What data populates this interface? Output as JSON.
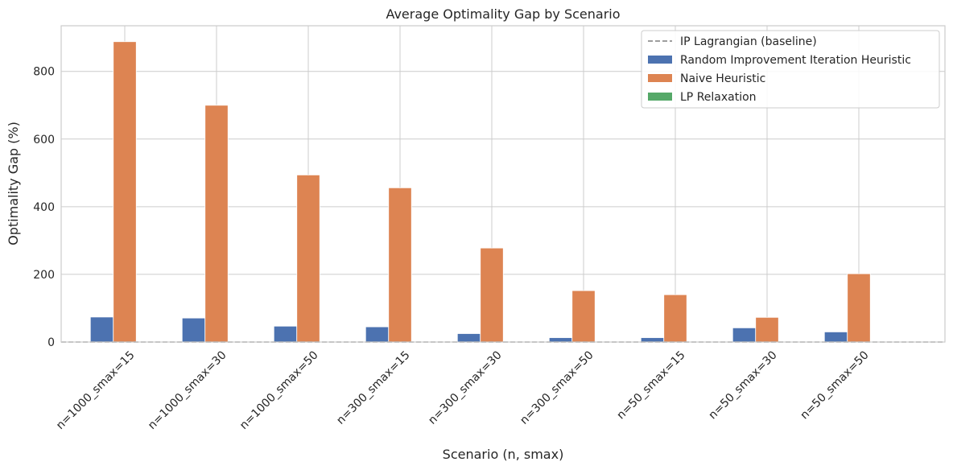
{
  "chart_data": {
    "type": "bar",
    "title": "Average Optimality Gap by Scenario",
    "xlabel": "Scenario (n, smax)",
    "ylabel": "Optimality Gap (%)",
    "ylim": [
      0,
      935
    ],
    "yticks": [
      0,
      200,
      400,
      600,
      800
    ],
    "grid": true,
    "legend_position": "top-right",
    "categories": [
      "n=1000_smax=15",
      "n=1000_smax=30",
      "n=1000_smax=50",
      "n=300_smax=15",
      "n=300_smax=30",
      "n=300_smax=50",
      "n=50_smax=15",
      "n=50_smax=30",
      "n=50_smax=50"
    ],
    "baseline": {
      "name": "IP Lagrangian (baseline)",
      "value": 0,
      "style": "dashed",
      "color": "#7f7f7f"
    },
    "series": [
      {
        "name": "Random Improvement Iteration Heuristic",
        "color": "#4c72b0",
        "values": [
          74,
          71,
          47,
          45,
          25,
          13,
          13,
          42,
          30
        ]
      },
      {
        "name": "Naive Heuristic",
        "color": "#dd8452",
        "values": [
          888,
          700,
          494,
          456,
          278,
          152,
          140,
          73,
          202
        ]
      },
      {
        "name": "LP Relaxation",
        "color": "#55a868",
        "values": [
          2,
          2,
          2,
          2,
          2,
          2,
          2,
          2,
          2
        ]
      }
    ]
  }
}
